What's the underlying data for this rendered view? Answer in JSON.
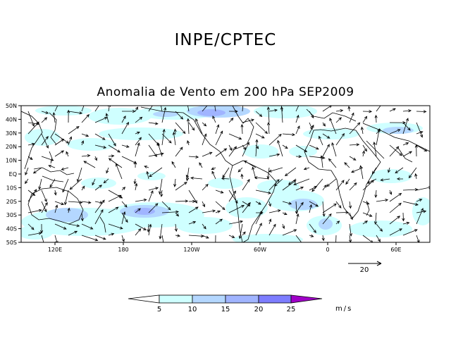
{
  "header": {
    "title": "INPE/CPTEC"
  },
  "map": {
    "title": "Anomalia de Vento em 200 hPa SEP2009",
    "lat_labels": [
      "50N",
      "40N",
      "30N",
      "20N",
      "10N",
      "EQ",
      "10S",
      "20S",
      "30S",
      "40S",
      "50S"
    ],
    "lon_labels": [
      "120E",
      "180",
      "120W",
      "60W",
      "0",
      "60E"
    ],
    "reference_vector": {
      "label": "20"
    },
    "colorbar": {
      "ticks": [
        "5",
        "10",
        "15",
        "20",
        "25"
      ],
      "units": "m/s",
      "colors": [
        "#ffffff",
        "#cfffff",
        "#b4d7ff",
        "#a0b4ff",
        "#7d7dff",
        "#a000c8"
      ]
    }
  }
}
